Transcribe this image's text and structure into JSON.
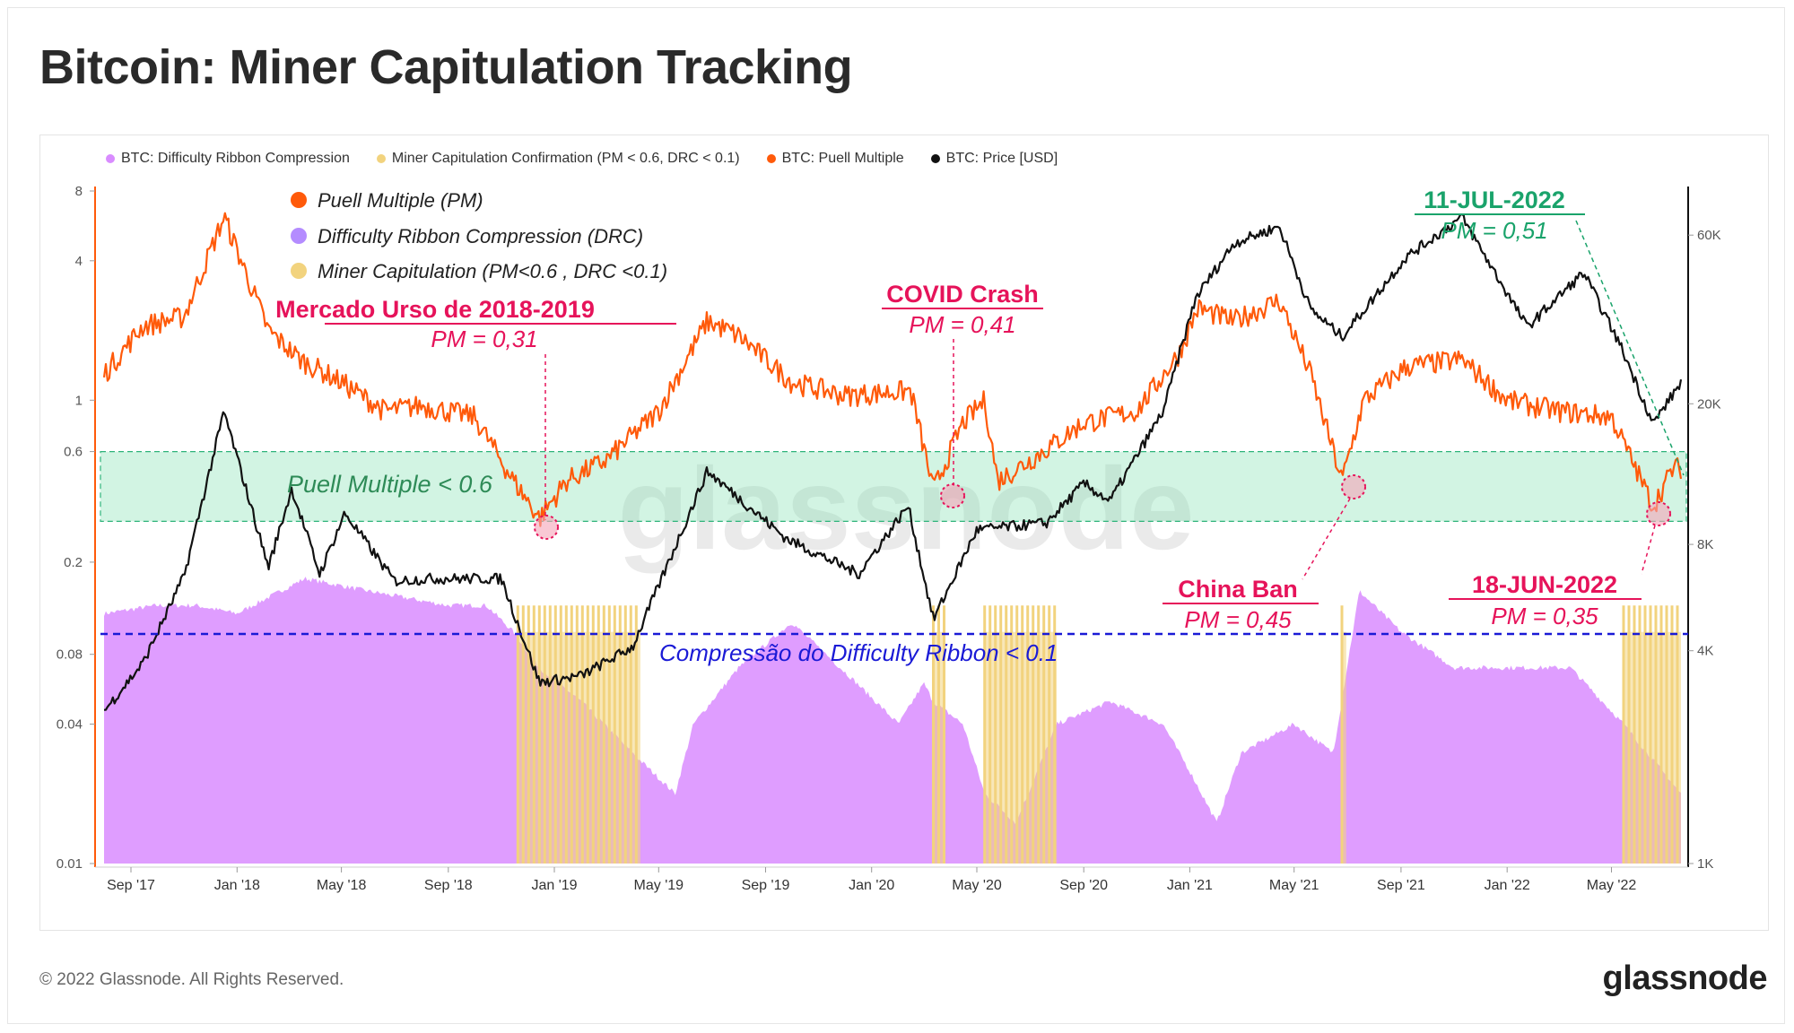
{
  "title": "Bitcoin: Miner Capitulation Tracking",
  "footer": {
    "copyright": "© 2022 Glassnode. All Rights Reserved.",
    "logo": "glassnode"
  },
  "watermark": "glassnode",
  "legend": [
    {
      "label": "BTC: Difficulty Ribbon Compression",
      "color": "#d98cff"
    },
    {
      "label": "Miner Capitulation Confirmation (PM < 0.6, DRC < 0.1)",
      "color": "#f2d37e"
    },
    {
      "label": "BTC: Puell Multiple",
      "color": "#ff5a0a"
    },
    {
      "label": "BTC: Price [USD]",
      "color": "#111111"
    }
  ],
  "inner_legend": [
    {
      "label": "Puell Multiple (PM)",
      "color": "#ff5a0a"
    },
    {
      "label": "Difficulty Ribbon Compression (DRC)",
      "color": "#b48cff"
    },
    {
      "label": "Miner Capitulation (PM<0.6 , DRC <0.1)",
      "color": "#f2d37e"
    }
  ],
  "chart_data": {
    "type": "line",
    "x_start": "2017-08-01",
    "x_end": "2022-07-20",
    "x_ticks": [
      "Sep '17",
      "Jan '18",
      "May '18",
      "Sep '18",
      "Jan '19",
      "May '19",
      "Sep '19",
      "Jan '20",
      "May '20",
      "Sep '20",
      "Jan '21",
      "May '21",
      "Sep '21",
      "Jan '22",
      "May '22"
    ],
    "left_axis": {
      "scale": "log",
      "range": [
        0.01,
        8
      ],
      "ticks": [
        "8",
        "4",
        "1",
        "0.6",
        "0.2",
        "0.08",
        "0.04",
        "0.01"
      ]
    },
    "right_axis": {
      "scale": "log",
      "range": [
        1000,
        80000
      ],
      "ticks": [
        "60K",
        "20K",
        "8K",
        "4K",
        "1K"
      ]
    },
    "series": [
      {
        "name": "BTC: Puell Multiple",
        "axis": "left",
        "color": "#ff5a0a",
        "points": [
          [
            "2017-08-01",
            1.3
          ],
          [
            "2017-09-15",
            2.1
          ],
          [
            "2017-11-01",
            2.3
          ],
          [
            "2017-12-17",
            6.2
          ],
          [
            "2018-02-06",
            2.0
          ],
          [
            "2018-03-15",
            1.5
          ],
          [
            "2018-05-01",
            1.2
          ],
          [
            "2018-06-20",
            0.9
          ],
          [
            "2018-08-01",
            0.95
          ],
          [
            "2018-10-01",
            0.85
          ],
          [
            "2018-11-15",
            0.45
          ],
          [
            "2018-12-15",
            0.31
          ],
          [
            "2019-01-15",
            0.45
          ],
          [
            "2019-03-01",
            0.55
          ],
          [
            "2019-05-01",
            0.9
          ],
          [
            "2019-06-26",
            2.2
          ],
          [
            "2019-08-01",
            1.9
          ],
          [
            "2019-10-01",
            1.2
          ],
          [
            "2019-12-01",
            1.05
          ],
          [
            "2020-02-15",
            1.1
          ],
          [
            "2020-03-12",
            0.41
          ],
          [
            "2020-04-15",
            0.8
          ],
          [
            "2020-05-10",
            1.0
          ],
          [
            "2020-05-25",
            0.45
          ],
          [
            "2020-07-01",
            0.55
          ],
          [
            "2020-09-01",
            0.8
          ],
          [
            "2020-11-01",
            0.9
          ],
          [
            "2020-12-20",
            1.6
          ],
          [
            "2021-01-10",
            2.5
          ],
          [
            "2021-02-20",
            2.2
          ],
          [
            "2021-04-14",
            2.7
          ],
          [
            "2021-05-20",
            1.3
          ],
          [
            "2021-06-25",
            0.45
          ],
          [
            "2021-07-20",
            1.0
          ],
          [
            "2021-09-07",
            1.4
          ],
          [
            "2021-11-10",
            1.5
          ],
          [
            "2022-01-01",
            1.0
          ],
          [
            "2022-03-01",
            0.9
          ],
          [
            "2022-05-01",
            0.85
          ],
          [
            "2022-06-18",
            0.35
          ],
          [
            "2022-07-11",
            0.51
          ]
        ]
      },
      {
        "name": "BTC: Price [USD]",
        "axis": "right",
        "color": "#111111",
        "points": [
          [
            "2017-08-01",
            2700
          ],
          [
            "2017-09-15",
            3700
          ],
          [
            "2017-11-01",
            6500
          ],
          [
            "2017-12-17",
            19000
          ],
          [
            "2018-02-06",
            6900
          ],
          [
            "2018-03-05",
            11500
          ],
          [
            "2018-04-06",
            6600
          ],
          [
            "2018-05-05",
            9800
          ],
          [
            "2018-07-01",
            6300
          ],
          [
            "2018-08-10",
            6400
          ],
          [
            "2018-11-01",
            6400
          ],
          [
            "2018-12-15",
            3250
          ],
          [
            "2019-02-01",
            3400
          ],
          [
            "2019-04-01",
            4100
          ],
          [
            "2019-06-26",
            12900
          ],
          [
            "2019-09-25",
            8300
          ],
          [
            "2019-12-17",
            6600
          ],
          [
            "2020-02-12",
            10300
          ],
          [
            "2020-03-12",
            4900
          ],
          [
            "2020-05-01",
            8800
          ],
          [
            "2020-07-20",
            9200
          ],
          [
            "2020-09-01",
            11900
          ],
          [
            "2020-10-01",
            10600
          ],
          [
            "2020-12-01",
            19000
          ],
          [
            "2021-01-08",
            40000
          ],
          [
            "2021-02-21",
            57000
          ],
          [
            "2021-04-14",
            63500
          ],
          [
            "2021-05-20",
            37000
          ],
          [
            "2021-06-25",
            31000
          ],
          [
            "2021-08-01",
            40000
          ],
          [
            "2021-09-07",
            52000
          ],
          [
            "2021-11-10",
            67500
          ],
          [
            "2022-01-24",
            33000
          ],
          [
            "2022-03-30",
            47000
          ],
          [
            "2022-05-12",
            29000
          ],
          [
            "2022-06-18",
            17600
          ],
          [
            "2022-07-20",
            23000
          ]
        ]
      },
      {
        "name": "BTC: Difficulty Ribbon Compression",
        "axis": "left",
        "color": "#d98cff",
        "points": [
          [
            "2017-08-01",
            0.12
          ],
          [
            "2017-10-01",
            0.13
          ],
          [
            "2017-11-15",
            0.13
          ],
          [
            "2018-01-01",
            0.12
          ],
          [
            "2018-03-20",
            0.17
          ],
          [
            "2018-06-01",
            0.15
          ],
          [
            "2018-09-01",
            0.13
          ],
          [
            "2018-10-15",
            0.13
          ],
          [
            "2018-11-15",
            0.1
          ],
          [
            "2018-12-15",
            0.07
          ],
          [
            "2019-02-01",
            0.05
          ],
          [
            "2019-04-01",
            0.03
          ],
          [
            "2019-05-20",
            0.02
          ],
          [
            "2019-06-10",
            0.04
          ],
          [
            "2019-08-01",
            0.07
          ],
          [
            "2019-10-01",
            0.11
          ],
          [
            "2019-12-15",
            0.06
          ],
          [
            "2020-02-01",
            0.04
          ],
          [
            "2020-03-01",
            0.06
          ],
          [
            "2020-03-12",
            0.05
          ],
          [
            "2020-04-15",
            0.04
          ],
          [
            "2020-05-10",
            0.02
          ],
          [
            "2020-06-15",
            0.015
          ],
          [
            "2020-08-01",
            0.04
          ],
          [
            "2020-10-01",
            0.05
          ],
          [
            "2020-12-01",
            0.04
          ],
          [
            "2021-01-01",
            0.025
          ],
          [
            "2021-02-01",
            0.015
          ],
          [
            "2021-03-01",
            0.03
          ],
          [
            "2021-05-01",
            0.04
          ],
          [
            "2021-06-15",
            0.03
          ],
          [
            "2021-07-15",
            0.15
          ],
          [
            "2021-09-01",
            0.1
          ],
          [
            "2021-11-01",
            0.07
          ],
          [
            "2022-01-15",
            0.07
          ],
          [
            "2022-03-15",
            0.07
          ],
          [
            "2022-05-15",
            0.04
          ],
          [
            "2022-07-20",
            0.02
          ]
        ]
      },
      {
        "name": "Miner Capitulation Confirmation (PM < 0.6, DRC < 0.1)",
        "axis": "left",
        "color": "#f2d37e",
        "ranges": [
          [
            "2018-11-20",
            "2019-04-10"
          ],
          [
            "2020-03-12",
            "2020-03-25"
          ],
          [
            "2020-05-10",
            "2020-08-01"
          ],
          [
            "2021-06-25",
            "2021-06-30"
          ],
          [
            "2022-05-15",
            "2022-07-20"
          ]
        ]
      }
    ]
  },
  "annotations": {
    "band_label": "Puell Multiple < 0.6",
    "drc_label": "Compressão do Difficulty Ribbon  < 0.1",
    "bear": {
      "title": "Mercado Urso de 2018-2019",
      "value": "PM = 0,31"
    },
    "covid": {
      "title": "COVID Crash",
      "value": "PM = 0,41"
    },
    "china": {
      "title": "China Ban",
      "value": "PM = 0,45"
    },
    "jun22": {
      "title": "18-JUN-2022",
      "value": "PM = 0,35"
    },
    "jul22": {
      "title": "11-JUL-2022",
      "value": "PM = 0,51"
    }
  }
}
